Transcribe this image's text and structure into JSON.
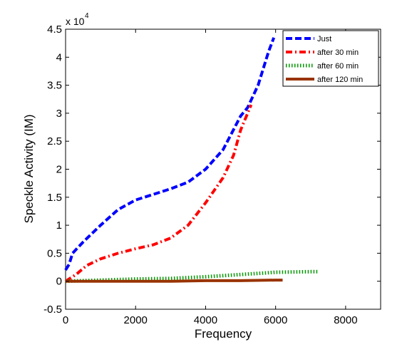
{
  "chart_data": {
    "type": "line",
    "title": "",
    "xlabel": "Frequency",
    "ylabel": "Speckle Activity (IM)",
    "xlim": [
      0,
      9000
    ],
    "ylim": [
      -0.5,
      4.5
    ],
    "y_exponent_label": "x 10",
    "y_exponent_power": "4",
    "x_ticks": [
      0,
      2000,
      4000,
      6000,
      8000
    ],
    "x_tick_labels": [
      "0",
      "2000",
      "4000",
      "6000",
      "8000"
    ],
    "y_ticks": [
      -0.5,
      0,
      0.5,
      1,
      1.5,
      2,
      2.5,
      3,
      3.5,
      4,
      4.5
    ],
    "y_tick_labels": [
      "-0.5",
      "0",
      "0.5",
      "1",
      "1.5",
      "2",
      "2.5",
      "3",
      "3.5",
      "4",
      "4.5"
    ],
    "grid": false,
    "legend_position": "top-right",
    "series": [
      {
        "name": "Just",
        "color": "#0000ff",
        "style": "dashed",
        "x": [
          0,
          100,
          200,
          500,
          1000,
          1500,
          2000,
          2500,
          3000,
          3500,
          4000,
          4500,
          5000,
          5200,
          5500,
          5800,
          5950
        ],
        "y": [
          0.2,
          0.3,
          0.5,
          0.7,
          1.0,
          1.28,
          1.45,
          1.55,
          1.65,
          1.77,
          2.0,
          2.35,
          2.95,
          3.1,
          3.5,
          4.1,
          4.35
        ]
      },
      {
        "name": "after 30 min",
        "color": "#ff0000",
        "style": "dashdot",
        "x": [
          0,
          300,
          600,
          1000,
          1500,
          2000,
          2500,
          3000,
          3500,
          4000,
          4500,
          4800,
          5000,
          5200,
          5300
        ],
        "y": [
          0.0,
          0.12,
          0.28,
          0.4,
          0.5,
          0.58,
          0.65,
          0.77,
          1.0,
          1.4,
          1.85,
          2.25,
          2.7,
          3.0,
          3.15
        ]
      },
      {
        "name": "after 60 min",
        "color": "#009900",
        "style": "dotted",
        "x": [
          0,
          1000,
          2000,
          3000,
          4000,
          5000,
          6000,
          7000,
          7200
        ],
        "y": [
          0.0,
          0.02,
          0.04,
          0.05,
          0.08,
          0.12,
          0.16,
          0.17,
          0.17
        ]
      },
      {
        "name": "after 120 min",
        "color": "#993300",
        "style": "solid",
        "x": [
          0,
          1000,
          2000,
          3000,
          4000,
          5000,
          6000,
          6200
        ],
        "y": [
          0.0,
          0.0,
          0.0,
          0.0,
          0.01,
          0.01,
          0.02,
          0.02
        ]
      }
    ]
  }
}
